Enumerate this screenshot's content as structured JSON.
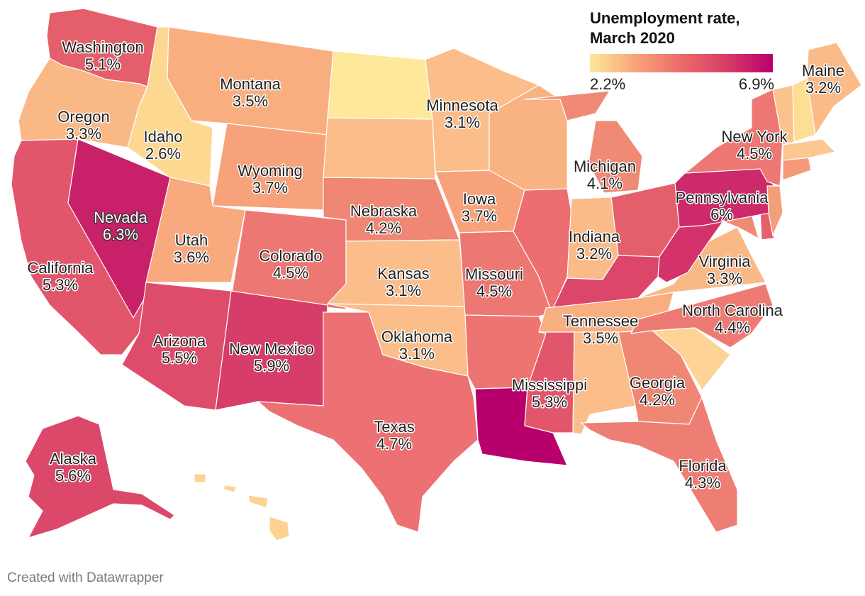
{
  "legend": {
    "title_line1": "Unemployment rate,",
    "title_line2": "March 2020",
    "min_label": "2.2%",
    "max_label": "6.9%",
    "color_low": "#fde89a",
    "color_high": "#b8006c"
  },
  "credit": "Created with Datawrapper",
  "states": {
    "WA": {
      "name": "Washington",
      "value": "5.1%",
      "color": "#e45f6b"
    },
    "OR": {
      "name": "Oregon",
      "value": "3.3%",
      "color": "#fab886"
    },
    "CA": {
      "name": "California",
      "value": "5.3%",
      "color": "#e2566c"
    },
    "NV": {
      "name": "Nevada",
      "value": "6.3%",
      "color": "#c9206a"
    },
    "ID": {
      "name": "Idaho",
      "value": "2.6%",
      "color": "#fdd890"
    },
    "MT": {
      "name": "Montana",
      "value": "3.5%",
      "color": "#f9ae80"
    },
    "WY": {
      "name": "Wyoming",
      "value": "3.7%",
      "color": "#f7a27a"
    },
    "UT": {
      "name": "Utah",
      "value": "3.6%",
      "color": "#f8a97d"
    },
    "AZ": {
      "name": "Arizona",
      "value": "5.5%",
      "color": "#dd4c6b"
    },
    "NM": {
      "name": "New Mexico",
      "value": "5.9%",
      "color": "#d63d68"
    },
    "CO": {
      "name": "Colorado",
      "value": "4.5%",
      "color": "#ed7773"
    },
    "ND": {
      "name": "",
      "value": "",
      "color": "#fee89a"
    },
    "SD": {
      "name": "",
      "value": "",
      "color": "#fbbd8a"
    },
    "NE": {
      "name": "Nebraska",
      "value": "4.2%",
      "color": "#f08674"
    },
    "KS": {
      "name": "Kansas",
      "value": "3.1%",
      "color": "#fbbe8a"
    },
    "OK": {
      "name": "Oklahoma",
      "value": "3.1%",
      "color": "#fbbe8a"
    },
    "TX": {
      "name": "Texas",
      "value": "4.7%",
      "color": "#ed7172"
    },
    "MN": {
      "name": "Minnesota",
      "value": "3.1%",
      "color": "#fbbd8a"
    },
    "IA": {
      "name": "Iowa",
      "value": "3.7%",
      "color": "#f7a27a"
    },
    "MO": {
      "name": "Missouri",
      "value": "4.5%",
      "color": "#ed7773"
    },
    "AR": {
      "name": "",
      "value": "",
      "color": "#ee7472"
    },
    "LA": {
      "name": "",
      "value": "",
      "color": "#b8006c"
    },
    "WI": {
      "name": "",
      "value": "",
      "color": "#f9b282"
    },
    "IL": {
      "name": "",
      "value": "",
      "color": "#ec6e70"
    },
    "MI": {
      "name": "Michigan",
      "value": "4.1%",
      "color": "#f08a75"
    },
    "IN": {
      "name": "Indiana",
      "value": "3.2%",
      "color": "#fabb88"
    },
    "OH": {
      "name": "",
      "value": "",
      "color": "#e45f6c"
    },
    "KY": {
      "name": "",
      "value": "",
      "color": "#db466a"
    },
    "TN": {
      "name": "Tennessee",
      "value": "3.5%",
      "color": "#f9ae80"
    },
    "MS": {
      "name": "Mississippi",
      "value": "5.3%",
      "color": "#e2566c"
    },
    "AL": {
      "name": "",
      "value": "",
      "color": "#fbbd8a"
    },
    "GA": {
      "name": "Georgia",
      "value": "4.2%",
      "color": "#f08674"
    },
    "FL": {
      "name": "Florida",
      "value": "4.3%",
      "color": "#ee7d73"
    },
    "SC": {
      "name": "",
      "value": "",
      "color": "#fdd396"
    },
    "NC": {
      "name": "North Carolina",
      "value": "4.4%",
      "color": "#ee7b73"
    },
    "VA": {
      "name": "Virginia",
      "value": "3.3%",
      "color": "#fab886"
    },
    "WV": {
      "name": "",
      "value": "",
      "color": "#d3336a"
    },
    "PA": {
      "name": "Pennsylvania",
      "value": "6%",
      "color": "#cc2a6a"
    },
    "NY": {
      "name": "New York",
      "value": "4.5%",
      "color": "#ed7773"
    },
    "ME": {
      "name": "Maine",
      "value": "3.2%",
      "color": "#fbbb88"
    },
    "NH": {
      "name": "",
      "value": "",
      "color": "#fedd94"
    },
    "VT": {
      "name": "",
      "value": "",
      "color": "#fbc38c"
    },
    "MA": {
      "name": "",
      "value": "",
      "color": "#fcc890"
    },
    "CT": {
      "name": "",
      "value": "",
      "color": "#f59a78"
    },
    "NJ": {
      "name": "",
      "value": "",
      "color": "#f3a07a"
    },
    "DE": {
      "name": "",
      "value": "",
      "color": "#e5606c"
    },
    "MD": {
      "name": "",
      "value": "",
      "color": "#f08a75"
    },
    "AK": {
      "name": "Alaska",
      "value": "5.6%",
      "color": "#db486a"
    },
    "HI": {
      "name": "",
      "value": "",
      "color": "#fdd292"
    }
  }
}
